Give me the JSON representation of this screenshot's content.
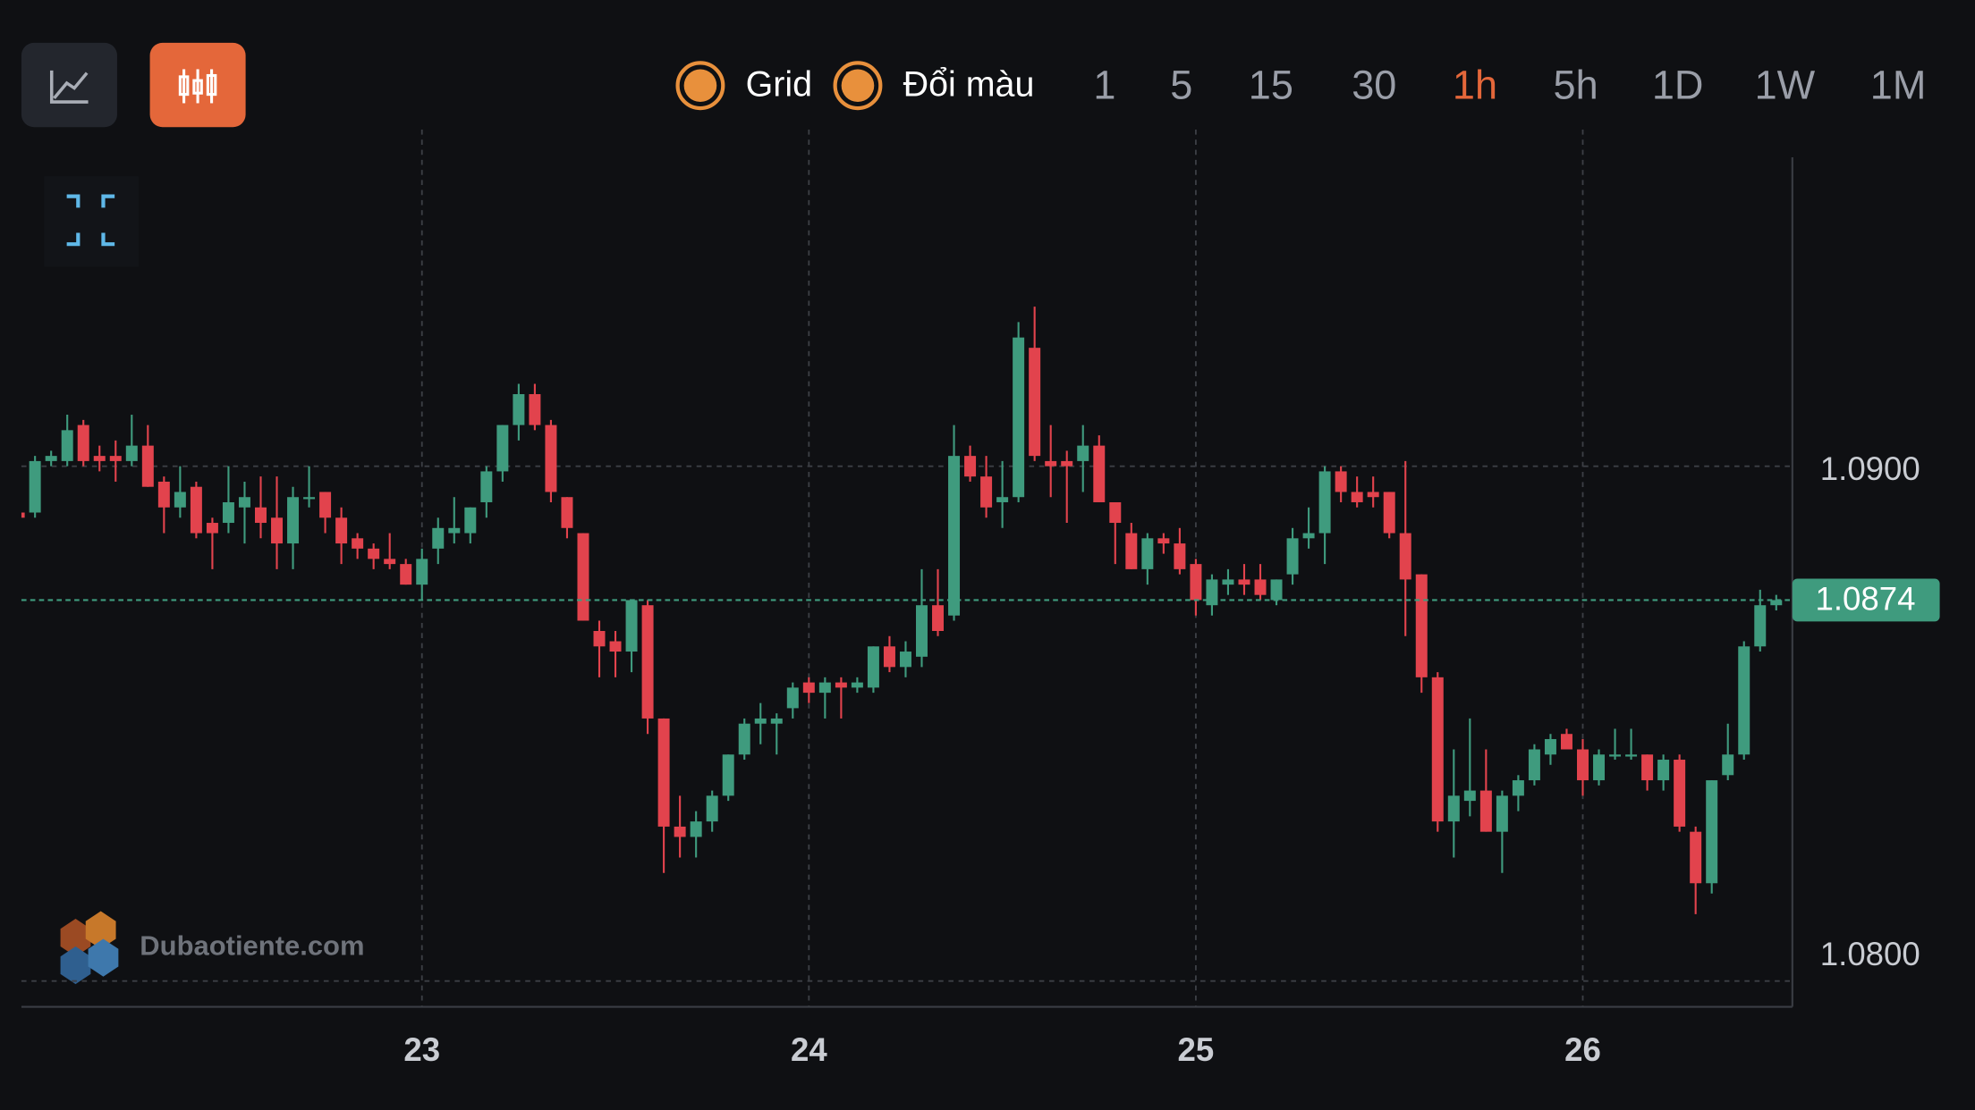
{
  "toolbar": {
    "toggles": [
      {
        "label": "Grid"
      },
      {
        "label": "Đổi màu"
      }
    ],
    "timeframes": [
      "1",
      "5",
      "15",
      "30",
      "1h",
      "5h",
      "1D",
      "1W",
      "1M"
    ],
    "active_timeframe": 4
  },
  "watermark": "Dubaotiente.com",
  "chart_data": {
    "type": "candlestick",
    "x": [
      0,
      1,
      2,
      3,
      4,
      5,
      6,
      7,
      8,
      9,
      10,
      11,
      12,
      13,
      14,
      15,
      16,
      17,
      18,
      19,
      20,
      21,
      22,
      23,
      24,
      25,
      26,
      27,
      28,
      29,
      30,
      31,
      32,
      33,
      34,
      35,
      36,
      37,
      38,
      39,
      40,
      41,
      42,
      43,
      44,
      45,
      46,
      47,
      48,
      49,
      50,
      51,
      52,
      53,
      54,
      55,
      56,
      57,
      58,
      59,
      60,
      61,
      62,
      63,
      64,
      65,
      66,
      67,
      68,
      69,
      70,
      71,
      72,
      73,
      74,
      75,
      76,
      77,
      78,
      79,
      80,
      81,
      82,
      83,
      84,
      85,
      86,
      87,
      88,
      89,
      90,
      91,
      92,
      93,
      94,
      95,
      96,
      97,
      98,
      99,
      100,
      101,
      102,
      103,
      104,
      105,
      106,
      107,
      108,
      109
    ],
    "open": [
      1.0891,
      1.0891,
      1.0901,
      1.0901,
      1.0908,
      1.0902,
      1.0902,
      1.0901,
      1.0904,
      1.0897,
      1.0892,
      1.0896,
      1.0889,
      1.0889,
      1.0892,
      1.0892,
      1.089,
      1.0885,
      1.0894,
      1.0895,
      1.089,
      1.0886,
      1.0884,
      1.0882,
      1.0881,
      1.0877,
      1.0884,
      1.0887,
      1.0887,
      1.0893,
      1.0899,
      1.0908,
      1.0914,
      1.0908,
      1.0894,
      1.0887,
      1.0868,
      1.0866,
      1.0864,
      1.0873,
      1.0851,
      1.083,
      1.0828,
      1.0831,
      1.0836,
      1.0844,
      1.085,
      1.085,
      1.0853,
      1.0858,
      1.0856,
      1.0858,
      1.0857,
      1.0857,
      1.0865,
      1.0861,
      1.0863,
      1.0873,
      1.0871,
      1.0902,
      1.0898,
      1.0893,
      1.0894,
      1.0923,
      1.0901,
      1.0901,
      1.0901,
      1.0904,
      1.0893,
      1.0887,
      1.088,
      1.0886,
      1.0885,
      1.0881,
      1.0873,
      1.0877,
      1.0878,
      1.0878,
      1.0874,
      1.0879,
      1.0886,
      1.0887,
      1.0899,
      1.0895,
      1.0895,
      1.0895,
      1.0887,
      1.0879,
      1.0859,
      1.0831,
      1.0835,
      1.0837,
      1.0829,
      1.0836,
      1.0839,
      1.0844,
      1.0848,
      1.0845,
      1.0839,
      1.0844,
      1.0844,
      1.0844,
      1.0839,
      1.0843,
      1.0829,
      1.0819,
      1.084,
      1.0844,
      1.0865,
      1.0873
    ],
    "high": [
      1.0892,
      1.0902,
      1.0903,
      1.091,
      1.0909,
      1.0904,
      1.0905,
      1.091,
      1.0908,
      1.0898,
      1.09,
      1.0897,
      1.089,
      1.09,
      1.0897,
      1.0898,
      1.0898,
      1.0896,
      1.09,
      1.0895,
      1.0892,
      1.0887,
      1.0885,
      1.0887,
      1.0882,
      1.0884,
      1.089,
      1.0894,
      1.0892,
      1.09,
      1.0908,
      1.0916,
      1.0916,
      1.0909,
      1.0894,
      1.0887,
      1.087,
      1.0868,
      1.0874,
      1.0874,
      1.0851,
      1.0836,
      1.0833,
      1.0837,
      1.0844,
      1.0851,
      1.0854,
      1.0852,
      1.0858,
      1.0859,
      1.0859,
      1.0859,
      1.0859,
      1.0865,
      1.0867,
      1.0866,
      1.088,
      1.088,
      1.0908,
      1.0904,
      1.0902,
      1.0901,
      1.0928,
      1.0931,
      1.0908,
      1.0903,
      1.0908,
      1.0906,
      1.0893,
      1.0889,
      1.0887,
      1.0887,
      1.0888,
      1.0882,
      1.0879,
      1.088,
      1.0881,
      1.0881,
      1.0878,
      1.0888,
      1.0892,
      1.09,
      1.09,
      1.0898,
      1.0898,
      1.0895,
      1.0901,
      1.0879,
      1.086,
      1.0845,
      1.0851,
      1.0845,
      1.0837,
      1.084,
      1.0846,
      1.0848,
      1.0849,
      1.0847,
      1.0845,
      1.0849,
      1.0849,
      1.0844,
      1.0844,
      1.0844,
      1.083,
      1.0839,
      1.085,
      1.0866,
      1.0876,
      1.0875
    ],
    "low": [
      1.089,
      1.089,
      1.09,
      1.09,
      1.09,
      1.0899,
      1.0897,
      1.09,
      1.0896,
      1.0887,
      1.089,
      1.0886,
      1.088,
      1.0887,
      1.0885,
      1.0886,
      1.088,
      1.088,
      1.0892,
      1.0887,
      1.0881,
      1.0882,
      1.088,
      1.088,
      1.0877,
      1.0874,
      1.0881,
      1.0885,
      1.0885,
      1.089,
      1.0897,
      1.0905,
      1.0907,
      1.0893,
      1.0886,
      1.087,
      1.0859,
      1.0859,
      1.086,
      1.0848,
      1.0821,
      1.0824,
      1.0824,
      1.0829,
      1.0835,
      1.0843,
      1.0846,
      1.0844,
      1.0851,
      1.0854,
      1.0851,
      1.0851,
      1.0856,
      1.0856,
      1.086,
      1.0859,
      1.0861,
      1.0867,
      1.087,
      1.0897,
      1.089,
      1.0888,
      1.0893,
      1.0901,
      1.0894,
      1.0889,
      1.0895,
      1.0893,
      1.0881,
      1.088,
      1.0877,
      1.0883,
      1.0879,
      1.0871,
      1.0871,
      1.0875,
      1.0875,
      1.0874,
      1.0873,
      1.0877,
      1.0884,
      1.0881,
      1.0893,
      1.0892,
      1.0892,
      1.0886,
      1.0867,
      1.0856,
      1.0829,
      1.0824,
      1.0832,
      1.0829,
      1.0821,
      1.0833,
      1.0838,
      1.0842,
      1.0845,
      1.0836,
      1.0838,
      1.0843,
      1.0843,
      1.0837,
      1.0837,
      1.0829,
      1.0813,
      1.0817,
      1.0839,
      1.0843,
      1.0864,
      1.0872
    ],
    "close": [
      1.089,
      1.0901,
      1.0902,
      1.0907,
      1.0901,
      1.0901,
      1.0901,
      1.0904,
      1.0896,
      1.0892,
      1.0895,
      1.0887,
      1.0887,
      1.0893,
      1.0894,
      1.0889,
      1.0885,
      1.0894,
      1.0894,
      1.089,
      1.0885,
      1.0884,
      1.0882,
      1.0881,
      1.0877,
      1.0882,
      1.0888,
      1.0888,
      1.0892,
      1.0899,
      1.0908,
      1.0914,
      1.0908,
      1.0895,
      1.0888,
      1.087,
      1.0865,
      1.0864,
      1.0874,
      1.0851,
      1.083,
      1.0828,
      1.0831,
      1.0836,
      1.0844,
      1.085,
      1.0851,
      1.0851,
      1.0857,
      1.0856,
      1.0858,
      1.0857,
      1.0858,
      1.0865,
      1.0861,
      1.0864,
      1.0873,
      1.0868,
      1.0902,
      1.0898,
      1.0892,
      1.0894,
      1.0925,
      1.0902,
      1.09,
      1.09,
      1.0904,
      1.0893,
      1.0889,
      1.088,
      1.0886,
      1.0885,
      1.088,
      1.0874,
      1.0878,
      1.0878,
      1.0877,
      1.0875,
      1.0878,
      1.0886,
      1.0887,
      1.0899,
      1.0895,
      1.0893,
      1.0894,
      1.0887,
      1.0878,
      1.0859,
      1.0831,
      1.0836,
      1.0837,
      1.0829,
      1.0836,
      1.0839,
      1.0845,
      1.0847,
      1.0845,
      1.0839,
      1.0844,
      1.0844,
      1.0844,
      1.0839,
      1.0843,
      1.083,
      1.0819,
      1.0839,
      1.0844,
      1.0865,
      1.0873,
      1.0874
    ],
    "up_color": "#3f9b7e",
    "down_color": "#e2434d",
    "xlim": [
      0,
      110
    ],
    "xticks": [
      {
        "value": 25,
        "label": "23"
      },
      {
        "value": 49,
        "label": "24"
      },
      {
        "value": 73,
        "label": "25"
      },
      {
        "value": 97,
        "label": "26"
      }
    ],
    "ylim": [
      1.0795,
      1.096
    ],
    "yticks": [
      {
        "value": 1.08,
        "label": "1.0800"
      },
      {
        "value": 1.09,
        "label": "1.0900"
      }
    ],
    "grid": true,
    "last_price": 1.0874
  }
}
